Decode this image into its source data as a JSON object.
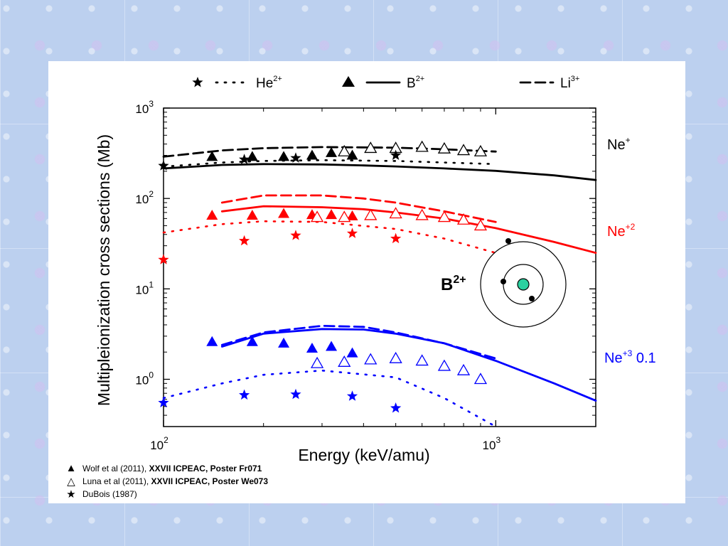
{
  "chart_data": {
    "type": "line",
    "xlabel": "Energy (keV/amu)",
    "ylabel": "Multipleionization cross sections (Mb)",
    "xscale": "log",
    "yscale": "log",
    "xlim": [
      100,
      2000
    ],
    "ylim": [
      0.3,
      1000
    ],
    "x_ticks": [
      {
        "base": "10",
        "exp": "2",
        "value": 100
      },
      {
        "base": "10",
        "exp": "3",
        "value": 1000
      }
    ],
    "y_ticks": [
      {
        "base": "10",
        "exp": "0",
        "value": 1
      },
      {
        "base": "10",
        "exp": "1",
        "value": 10
      },
      {
        "base": "10",
        "exp": "2",
        "value": 100
      },
      {
        "base": "10",
        "exp": "3",
        "value": 1000
      }
    ],
    "top_legend": [
      {
        "symbol": "★",
        "style": "dotted",
        "label": "He",
        "sup": "2+"
      },
      {
        "symbol": "▲",
        "style": "solid",
        "label": "B",
        "sup": "2+"
      },
      {
        "symbol": "",
        "style": "dashed",
        "label": "Li",
        "sup": "3+"
      }
    ],
    "series_labels": [
      {
        "text": "Ne",
        "sup": "+",
        "suffix": "",
        "color": "#000000"
      },
      {
        "text": "Ne",
        "sup": "+2",
        "suffix": "",
        "color": "#ff0000"
      },
      {
        "text": "Ne",
        "sup": "+3",
        "suffix": " 0.1",
        "color": "#0000ff"
      }
    ],
    "atom_label": {
      "base": "B",
      "sup": "2+"
    },
    "notes": [
      {
        "symbol": "▲",
        "author": "Wolf et al (2011), ",
        "ref": "XXVII ICPEAC, Poster Fr071"
      },
      {
        "symbol": "△",
        "author": "Luna et al (2011), ",
        "ref": "XXVII ICPEAC, Poster We073"
      },
      {
        "symbol": "★",
        "author": "DuBois (1987)",
        "ref": ""
      }
    ],
    "series": [
      {
        "name": "Ne+ B2+ theory",
        "color": "#000000",
        "style": "solid",
        "x": [
          100,
          150,
          200,
          300,
          400,
          500,
          700,
          1000,
          1500,
          2000
        ],
        "y": [
          215,
          235,
          240,
          238,
          232,
          226,
          215,
          202,
          180,
          160
        ]
      },
      {
        "name": "Ne+ Li3+ theory",
        "color": "#000000",
        "style": "dashed",
        "x": [
          100,
          150,
          200,
          300,
          500,
          700,
          1000
        ],
        "y": [
          290,
          340,
          360,
          370,
          365,
          350,
          330
        ]
      },
      {
        "name": "Ne+ He2+ theory",
        "color": "#000000",
        "style": "dotted",
        "x": [
          100,
          150,
          200,
          300,
          500,
          700,
          1000
        ],
        "y": [
          225,
          250,
          260,
          265,
          260,
          250,
          240
        ]
      },
      {
        "name": "Ne2+ B2+ theory",
        "color": "#ff0000",
        "style": "solid",
        "x": [
          150,
          200,
          300,
          400,
          500,
          700,
          1000,
          1500,
          2000
        ],
        "y": [
          72,
          82,
          80,
          76,
          70,
          60,
          47,
          33,
          25
        ]
      },
      {
        "name": "Ne2+ Li3+ theory",
        "color": "#ff0000",
        "style": "dashed",
        "x": [
          150,
          200,
          300,
          400,
          500,
          700,
          1000
        ],
        "y": [
          90,
          108,
          108,
          100,
          90,
          72,
          55
        ]
      },
      {
        "name": "Ne2+ He2+ theory",
        "color": "#ff0000",
        "style": "dotted",
        "x": [
          100,
          150,
          200,
          300,
          500,
          700,
          1000
        ],
        "y": [
          42,
          52,
          56,
          55,
          46,
          36,
          25
        ]
      },
      {
        "name": "Ne3+ B2+ theory",
        "color": "#0000ff",
        "style": "solid",
        "x": [
          150,
          200,
          300,
          400,
          500,
          700,
          1000,
          1500,
          2000
        ],
        "y": [
          2.3,
          3.2,
          3.6,
          3.55,
          3.2,
          2.5,
          1.6,
          0.9,
          0.58
        ]
      },
      {
        "name": "Ne3+ Li3+ theory",
        "color": "#0000ff",
        "style": "dashed",
        "x": [
          150,
          200,
          300,
          400,
          500,
          700,
          1000
        ],
        "y": [
          2.4,
          3.3,
          3.9,
          3.8,
          3.3,
          2.5,
          1.7
        ]
      },
      {
        "name": "Ne3+ He2+ theory",
        "color": "#0000ff",
        "style": "dotted",
        "x": [
          100,
          150,
          200,
          300,
          500,
          700,
          1000
        ],
        "y": [
          0.62,
          0.9,
          1.12,
          1.25,
          1.05,
          0.62,
          0.3
        ]
      }
    ],
    "points": [
      {
        "name": "Ne+ filled triangles",
        "marker": "tri-filled",
        "color": "#000000",
        "x": [
          140,
          185,
          230,
          280,
          320,
          370
        ],
        "y": [
          290,
          290,
          290,
          300,
          320,
          300
        ]
      },
      {
        "name": "Ne+ open triangles",
        "marker": "tri-open",
        "color": "#000000",
        "x": [
          350,
          420,
          500,
          600,
          700,
          800,
          900
        ],
        "y": [
          330,
          360,
          360,
          370,
          355,
          340,
          330
        ]
      },
      {
        "name": "Ne+ stars",
        "marker": "star",
        "color": "#000000",
        "x": [
          100,
          175,
          250,
          500
        ],
        "y": [
          230,
          270,
          280,
          300
        ]
      },
      {
        "name": "Ne2+ filled triangles",
        "marker": "tri-filled",
        "color": "#ff0000",
        "x": [
          140,
          185,
          230,
          280,
          320,
          370
        ],
        "y": [
          65,
          65,
          68,
          66,
          66,
          64
        ]
      },
      {
        "name": "Ne2+ open triangles",
        "marker": "tri-open",
        "color": "#ff0000",
        "x": [
          290,
          350,
          420,
          500,
          600,
          700,
          800,
          900
        ],
        "y": [
          62,
          62,
          65,
          68,
          65,
          62,
          58,
          50
        ]
      },
      {
        "name": "Ne2+ stars",
        "marker": "star",
        "color": "#ff0000",
        "x": [
          100,
          175,
          250,
          370,
          500
        ],
        "y": [
          21,
          34,
          39,
          41,
          36
        ]
      },
      {
        "name": "Ne3+ filled triangles",
        "marker": "tri-filled",
        "color": "#0000ff",
        "x": [
          140,
          185,
          230,
          280,
          320,
          370
        ],
        "y": [
          2.6,
          2.6,
          2.5,
          2.2,
          2.3,
          1.95
        ]
      },
      {
        "name": "Ne3+ open triangles",
        "marker": "tri-open",
        "color": "#0000ff",
        "x": [
          290,
          350,
          420,
          500,
          600,
          700,
          800,
          900
        ],
        "y": [
          1.5,
          1.55,
          1.65,
          1.7,
          1.6,
          1.4,
          1.25,
          1.0
        ]
      },
      {
        "name": "Ne3+ stars",
        "marker": "star",
        "color": "#0000ff",
        "x": [
          100,
          175,
          250,
          370,
          500
        ],
        "y": [
          0.55,
          0.67,
          0.68,
          0.65,
          0.48
        ]
      }
    ]
  }
}
